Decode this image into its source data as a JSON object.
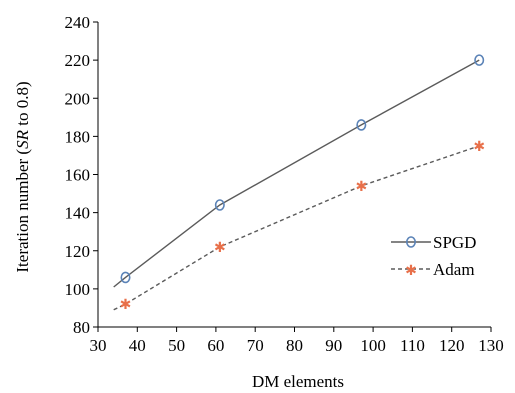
{
  "chart_data": {
    "type": "line",
    "title": "",
    "xlabel": "DM elements",
    "ylabel": {
      "prefix": "Iteration number (",
      "italic": "SR",
      "suffix": " to 0.8)"
    },
    "xlim": [
      30,
      130
    ],
    "ylim": [
      80,
      240
    ],
    "xticks": [
      30,
      40,
      50,
      60,
      70,
      80,
      90,
      100,
      110,
      120,
      130
    ],
    "yticks": [
      80,
      100,
      120,
      140,
      160,
      180,
      200,
      220,
      240
    ],
    "grid": false,
    "legend_position": "right",
    "series": [
      {
        "name": "SPGD",
        "color": "#5b5b5b",
        "marker_color": "#5b83b7",
        "marker": "circle",
        "line_style": "solid",
        "x": [
          37,
          61,
          97,
          127
        ],
        "y": [
          106,
          144,
          186,
          220
        ],
        "fit_x": [
          34,
          127
        ],
        "fit_y": [
          101,
          220
        ]
      },
      {
        "name": "Adam",
        "color": "#5b5b5b",
        "marker_color": "#e8704a",
        "marker": "star",
        "line_style": "dashed",
        "x": [
          37,
          61,
          97,
          127
        ],
        "y": [
          92,
          122,
          154,
          175
        ],
        "fit_x": [
          34,
          127
        ],
        "fit_y": [
          89,
          175
        ]
      }
    ]
  }
}
